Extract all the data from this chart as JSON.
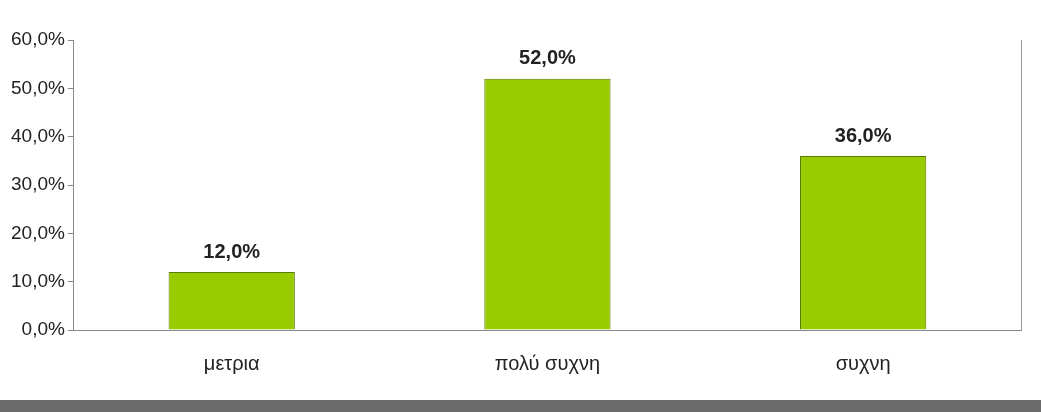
{
  "chart_data": {
    "type": "bar",
    "categories": [
      "μετρια",
      "πολύ συχνη",
      "συχνη"
    ],
    "values": [
      12,
      52,
      36
    ],
    "color": "#99cc00",
    "value_labels": [
      "12,0%",
      "52,0%",
      "36,0%"
    ],
    "ylim": [
      0,
      60
    ],
    "yticks": [
      {
        "value": 0,
        "label": "0,0%"
      },
      {
        "value": 10,
        "label": "10,0%"
      },
      {
        "value": 20,
        "label": "20,0%"
      },
      {
        "value": 30,
        "label": "30,0%"
      },
      {
        "value": 40,
        "label": "40,0%"
      },
      {
        "value": 50,
        "label": "50,0%"
      },
      {
        "value": 60,
        "label": "60,0%"
      }
    ],
    "grid": false,
    "legend": false
  }
}
